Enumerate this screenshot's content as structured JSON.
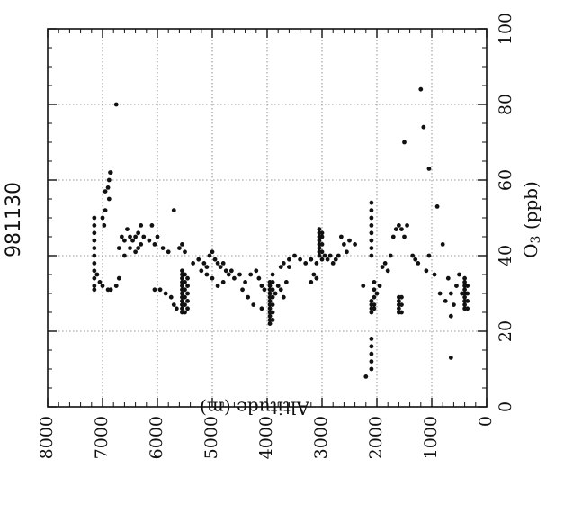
{
  "chart_data": {
    "type": "scatter",
    "title": "981130",
    "xlabel": "Altitude (m)",
    "ylabel": "O3 (ppb)",
    "ylabel_main": "O",
    "ylabel_sub": "3",
    "ylabel_unit": " (ppb)",
    "xlim": [
      0,
      8000
    ],
    "ylim": [
      0,
      100
    ],
    "xticks": [
      0,
      1000,
      2000,
      3000,
      4000,
      5000,
      6000,
      7000,
      8000
    ],
    "yticks": [
      0,
      20,
      40,
      60,
      80,
      100
    ],
    "grid": true,
    "orientation": "rotated-90",
    "marker_color": "#111111",
    "series": [
      {
        "points": [
          [
            7150,
            50
          ],
          [
            7150,
            48
          ],
          [
            7150,
            46
          ],
          [
            7150,
            44
          ],
          [
            7150,
            42
          ],
          [
            7150,
            40
          ],
          [
            7150,
            38
          ],
          [
            7150,
            36
          ],
          [
            7150,
            34
          ],
          [
            7150,
            32
          ],
          [
            7150,
            31
          ],
          [
            7100,
            35
          ],
          [
            7050,
            33
          ],
          [
            7000,
            32
          ],
          [
            6900,
            31
          ],
          [
            6850,
            31
          ],
          [
            6750,
            32
          ],
          [
            6700,
            34
          ],
          [
            6950,
            57
          ],
          [
            6900,
            58
          ],
          [
            6880,
            60
          ],
          [
            6860,
            62
          ],
          [
            6850,
            62
          ],
          [
            6880,
            55
          ],
          [
            6950,
            52
          ],
          [
            7000,
            50
          ],
          [
            6970,
            48
          ],
          [
            6750,
            80
          ],
          [
            6600,
            44
          ],
          [
            6500,
            45
          ],
          [
            6450,
            44
          ],
          [
            6400,
            45
          ],
          [
            6350,
            46
          ],
          [
            6300,
            48
          ],
          [
            6300,
            43
          ],
          [
            6350,
            42
          ],
          [
            6250,
            45
          ],
          [
            6400,
            41
          ],
          [
            6500,
            42
          ],
          [
            6600,
            40
          ],
          [
            6700,
            42
          ],
          [
            6650,
            45
          ],
          [
            6550,
            47
          ],
          [
            6150,
            44
          ],
          [
            6050,
            43
          ],
          [
            5900,
            42
          ],
          [
            5800,
            41
          ],
          [
            5700,
            52
          ],
          [
            6100,
            48
          ],
          [
            6000,
            45
          ],
          [
            6050,
            31
          ],
          [
            5950,
            31
          ],
          [
            5850,
            30
          ],
          [
            5750,
            29
          ],
          [
            5700,
            27
          ],
          [
            5650,
            26
          ],
          [
            5550,
            25
          ],
          [
            5550,
            26
          ],
          [
            5550,
            27
          ],
          [
            5550,
            28
          ],
          [
            5550,
            29
          ],
          [
            5550,
            30
          ],
          [
            5550,
            31
          ],
          [
            5550,
            32
          ],
          [
            5550,
            33
          ],
          [
            5550,
            34
          ],
          [
            5550,
            35
          ],
          [
            5550,
            36
          ],
          [
            5500,
            25
          ],
          [
            5500,
            27
          ],
          [
            5500,
            29
          ],
          [
            5500,
            31
          ],
          [
            5500,
            33
          ],
          [
            5500,
            35
          ],
          [
            5450,
            26
          ],
          [
            5450,
            28
          ],
          [
            5450,
            30
          ],
          [
            5450,
            32
          ],
          [
            5450,
            34
          ],
          [
            5600,
            42
          ],
          [
            5550,
            43
          ],
          [
            5500,
            41
          ],
          [
            5350,
            38
          ],
          [
            5250,
            39
          ],
          [
            5150,
            38
          ],
          [
            5100,
            37
          ],
          [
            5050,
            40
          ],
          [
            5000,
            41
          ],
          [
            4950,
            39
          ],
          [
            4900,
            38
          ],
          [
            4850,
            37
          ],
          [
            4800,
            38
          ],
          [
            4750,
            36
          ],
          [
            4700,
            35
          ],
          [
            4650,
            36
          ],
          [
            4600,
            34
          ],
          [
            5200,
            36
          ],
          [
            5100,
            35
          ],
          [
            5000,
            34
          ],
          [
            4900,
            32
          ],
          [
            4800,
            33
          ],
          [
            4500,
            35
          ],
          [
            4400,
            33
          ],
          [
            4300,
            35
          ],
          [
            4200,
            36
          ],
          [
            4150,
            34
          ],
          [
            4100,
            32
          ],
          [
            4050,
            31
          ],
          [
            4450,
            31
          ],
          [
            4350,
            29
          ],
          [
            4250,
            27
          ],
          [
            4100,
            26
          ],
          [
            3950,
            22
          ],
          [
            3950,
            23
          ],
          [
            3950,
            24
          ],
          [
            3950,
            25
          ],
          [
            3950,
            26
          ],
          [
            3950,
            27
          ],
          [
            3950,
            28
          ],
          [
            3950,
            29
          ],
          [
            3950,
            30
          ],
          [
            3950,
            31
          ],
          [
            3950,
            32
          ],
          [
            3950,
            33
          ],
          [
            3900,
            23
          ],
          [
            3900,
            25
          ],
          [
            3900,
            27
          ],
          [
            3900,
            29
          ],
          [
            3900,
            31
          ],
          [
            3900,
            33
          ],
          [
            3900,
            35
          ],
          [
            3850,
            30
          ],
          [
            3800,
            32
          ],
          [
            3750,
            31
          ],
          [
            3700,
            29
          ],
          [
            3650,
            33
          ],
          [
            3600,
            37
          ],
          [
            3750,
            37
          ],
          [
            3700,
            38
          ],
          [
            3600,
            39
          ],
          [
            3500,
            40
          ],
          [
            3400,
            39
          ],
          [
            3300,
            38
          ],
          [
            3200,
            39
          ],
          [
            3100,
            38
          ],
          [
            3050,
            40
          ],
          [
            3050,
            41
          ],
          [
            3050,
            42
          ],
          [
            3050,
            43
          ],
          [
            3050,
            44
          ],
          [
            3050,
            45
          ],
          [
            3050,
            46
          ],
          [
            3050,
            47
          ],
          [
            3000,
            39
          ],
          [
            3000,
            41
          ],
          [
            3000,
            43
          ],
          [
            3000,
            45
          ],
          [
            3000,
            46
          ],
          [
            3100,
            34
          ],
          [
            3200,
            33
          ],
          [
            3150,
            35
          ],
          [
            2950,
            40
          ],
          [
            2900,
            39
          ],
          [
            2850,
            40
          ],
          [
            2800,
            38
          ],
          [
            2750,
            39
          ],
          [
            2700,
            40
          ],
          [
            2650,
            45
          ],
          [
            2600,
            43
          ],
          [
            2550,
            41
          ],
          [
            2500,
            44
          ],
          [
            2400,
            43
          ],
          [
            2250,
            32
          ],
          [
            2200,
            8
          ],
          [
            2100,
            10
          ],
          [
            2100,
            12
          ],
          [
            2100,
            14
          ],
          [
            2100,
            16
          ],
          [
            2100,
            18
          ],
          [
            2100,
            25
          ],
          [
            2100,
            26
          ],
          [
            2100,
            27
          ],
          [
            2100,
            28
          ],
          [
            2100,
            40
          ],
          [
            2100,
            42
          ],
          [
            2100,
            44
          ],
          [
            2100,
            46
          ],
          [
            2100,
            48
          ],
          [
            2100,
            50
          ],
          [
            2100,
            52
          ],
          [
            2100,
            54
          ],
          [
            2050,
            26
          ],
          [
            2050,
            27
          ],
          [
            2050,
            29
          ],
          [
            2050,
            31
          ],
          [
            2050,
            33
          ],
          [
            2000,
            30
          ],
          [
            1950,
            32
          ],
          [
            1900,
            37
          ],
          [
            1850,
            38
          ],
          [
            1800,
            36
          ],
          [
            1750,
            40
          ],
          [
            1700,
            45
          ],
          [
            1650,
            47
          ],
          [
            1600,
            48
          ],
          [
            1550,
            47
          ],
          [
            1500,
            45
          ],
          [
            1450,
            48
          ],
          [
            1600,
            25
          ],
          [
            1600,
            26
          ],
          [
            1600,
            27
          ],
          [
            1600,
            28
          ],
          [
            1600,
            29
          ],
          [
            1550,
            25
          ],
          [
            1550,
            27
          ],
          [
            1550,
            29
          ],
          [
            1500,
            70
          ],
          [
            1350,
            40
          ],
          [
            1300,
            39
          ],
          [
            1250,
            38
          ],
          [
            1200,
            84
          ],
          [
            1150,
            74
          ],
          [
            1100,
            36
          ],
          [
            1050,
            40
          ],
          [
            1050,
            63
          ],
          [
            950,
            35
          ],
          [
            900,
            53
          ],
          [
            850,
            30
          ],
          [
            800,
            43
          ],
          [
            750,
            28
          ],
          [
            700,
            34
          ],
          [
            650,
            30
          ],
          [
            600,
            27
          ],
          [
            550,
            32
          ],
          [
            650,
            24
          ],
          [
            650,
            13
          ],
          [
            500,
            35
          ],
          [
            450,
            30
          ],
          [
            400,
            26
          ],
          [
            400,
            27
          ],
          [
            400,
            28
          ],
          [
            400,
            29
          ],
          [
            400,
            30
          ],
          [
            400,
            31
          ],
          [
            400,
            32
          ],
          [
            400,
            33
          ],
          [
            400,
            34
          ],
          [
            350,
            26
          ],
          [
            350,
            28
          ],
          [
            350,
            30
          ],
          [
            350,
            32
          ]
        ]
      }
    ]
  }
}
